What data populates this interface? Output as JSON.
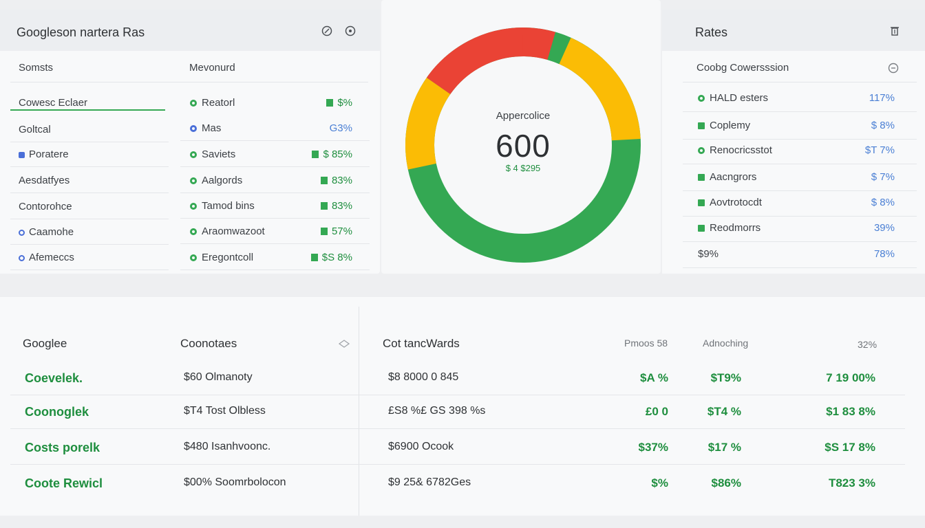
{
  "left_panel": {
    "title": "Googleson nartera Ras",
    "col1_header": "Somsts",
    "col2_header": "Mevonurd",
    "left_items": [
      {
        "label": "Cowesc Eclaer",
        "active": true
      },
      {
        "label": "Goltcal"
      },
      {
        "label": "Poratere"
      },
      {
        "label": "Aesdatfyes"
      },
      {
        "label": "Contorohce"
      },
      {
        "label": "Caamohe"
      },
      {
        "label": "Afemeccs"
      }
    ],
    "mid_items": [
      {
        "label": "Reatorl",
        "value": "$%",
        "dot": "#34a853"
      },
      {
        "label": "Mas",
        "value": "G3%",
        "dot": "#4a6fd8"
      },
      {
        "label": "Saviets",
        "value": "$ 85%",
        "dot": "#34a853"
      },
      {
        "label": "Aalgords",
        "value": "83%",
        "dot": "#34a853"
      },
      {
        "label": "Tamod bins",
        "value": "83%",
        "dot": "#34a853"
      },
      {
        "label": "Araomwazoot",
        "value": "57%",
        "dot": "#34a853"
      },
      {
        "label": "Eregontcoll",
        "value": "$S 8%",
        "dot": "#34a853"
      }
    ]
  },
  "donut": {
    "label": "Appercolice",
    "value": "600",
    "sub": "$ 4 $295"
  },
  "right_panel": {
    "title": "Rates",
    "subheader": "Coobg Cowersssion",
    "items": [
      {
        "label": "HALD esters",
        "value": "117%"
      },
      {
        "label": "Coplemy",
        "value": "$ 8%"
      },
      {
        "label": "Renocricsstot",
        "value": "$T 7%"
      },
      {
        "label": "Aacngrors",
        "value": "$ 7%"
      },
      {
        "label": "Aovtrotocdt",
        "value": "$ 8%"
      },
      {
        "label": "Reodmorrs",
        "value": "39%"
      },
      {
        "label": "$9%",
        "value": "78%"
      }
    ]
  },
  "bottom": {
    "col1_header": "Googlee",
    "col2_header": "Coonotaes",
    "col3_header": "Cot tancWards",
    "col4_header": "Pmoos 58",
    "col5_header": "Adnoching",
    "col6_header": "32%",
    "rows": [
      {
        "name": "Coevelek.",
        "desc": "$60 Olmanoty",
        "detail": "$8 8000 0 845",
        "v1": "$A %",
        "v2": "$T9%",
        "v3": "7 19 00%"
      },
      {
        "name": "Coonoglek",
        "desc": "$T4 Tost Olbless",
        "detail": "£S8 %£ GS 398 %s",
        "v1": "£0 0",
        "v2": "$T4 %",
        "v3": "$1 83 8%"
      },
      {
        "name": "Costs porelk",
        "desc": "$480 Isanhvoonc.",
        "detail": "$6900 Ocook",
        "v1": "$37%",
        "v2": "$17 %",
        "v3": "$S 17 8%"
      },
      {
        "name": "Coote Rewicl",
        "desc": "$00% Soomrbolocon",
        "detail": "$9 25& 6782Ges",
        "v1": "$%",
        "v2": "$86%",
        "v3": "T823 3%"
      }
    ]
  },
  "colors": {
    "green": "#34a853",
    "red": "#ea4335",
    "yellow": "#fbbc05",
    "blue": "#4a7fd4"
  }
}
